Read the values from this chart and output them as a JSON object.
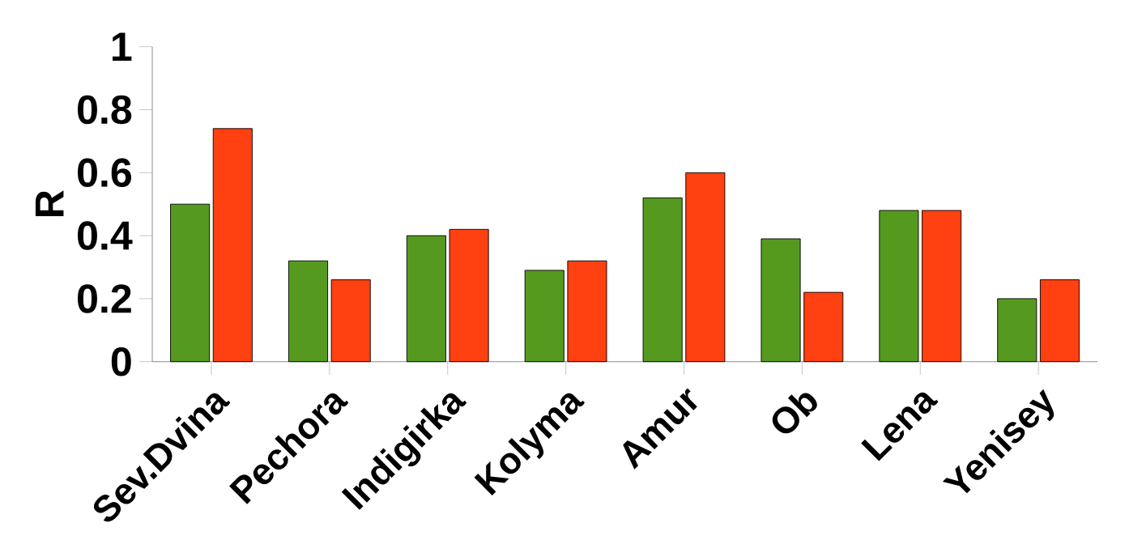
{
  "chart_data": {
    "type": "bar",
    "ylabel": "R",
    "categories": [
      "Sev.Dvina",
      "Pechora",
      "Indigirka",
      "Kolyma",
      "Amur",
      "Ob",
      "Lena",
      "Yenisey"
    ],
    "series": [
      {
        "color": "#559a1f",
        "values": [
          0.5,
          0.32,
          0.4,
          0.29,
          0.52,
          0.39,
          0.48,
          0.2
        ]
      },
      {
        "color": "#ff4010",
        "values": [
          0.74,
          0.26,
          0.42,
          0.32,
          0.6,
          0.22,
          0.48,
          0.26
        ]
      }
    ],
    "ylim": [
      0,
      1
    ],
    "yticks": [
      0,
      0.2,
      0.4,
      0.6,
      0.8,
      1
    ],
    "grid": false
  }
}
